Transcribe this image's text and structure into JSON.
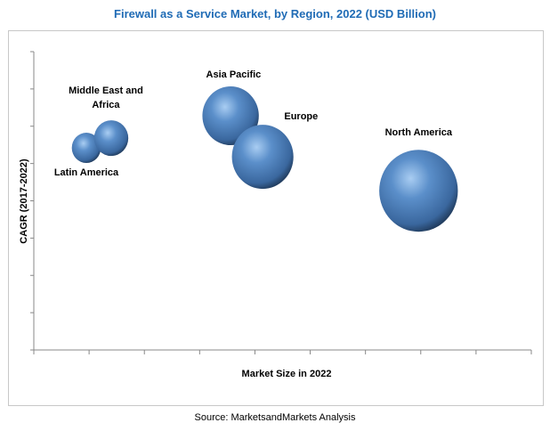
{
  "chart_data": {
    "type": "bubble",
    "title": "Firewall as a Service Market, by Region, 2022 (USD Billion)",
    "xlabel": "Market Size in 2022",
    "ylabel": "CAGR (2017-2022)",
    "xlim": [
      0,
      9
    ],
    "ylim": [
      0,
      8
    ],
    "grid": false,
    "bubble_color": "#4a7ebb",
    "points": [
      {
        "label": "Latin America",
        "x": 0.95,
        "y": 5.42,
        "size": 289
      },
      {
        "label": "Middle East and Africa",
        "x": 1.4,
        "y": 5.68,
        "size": 400
      },
      {
        "label": "Asia Pacific",
        "x": 3.56,
        "y": 6.28,
        "size": 1089
      },
      {
        "label": "Europe",
        "x": 4.14,
        "y": 5.18,
        "size": 1296
      },
      {
        "label": "North America",
        "x": 6.96,
        "y": 4.27,
        "size": 2116
      }
    ]
  },
  "source": "Source: MarketsandMarkets Analysis"
}
